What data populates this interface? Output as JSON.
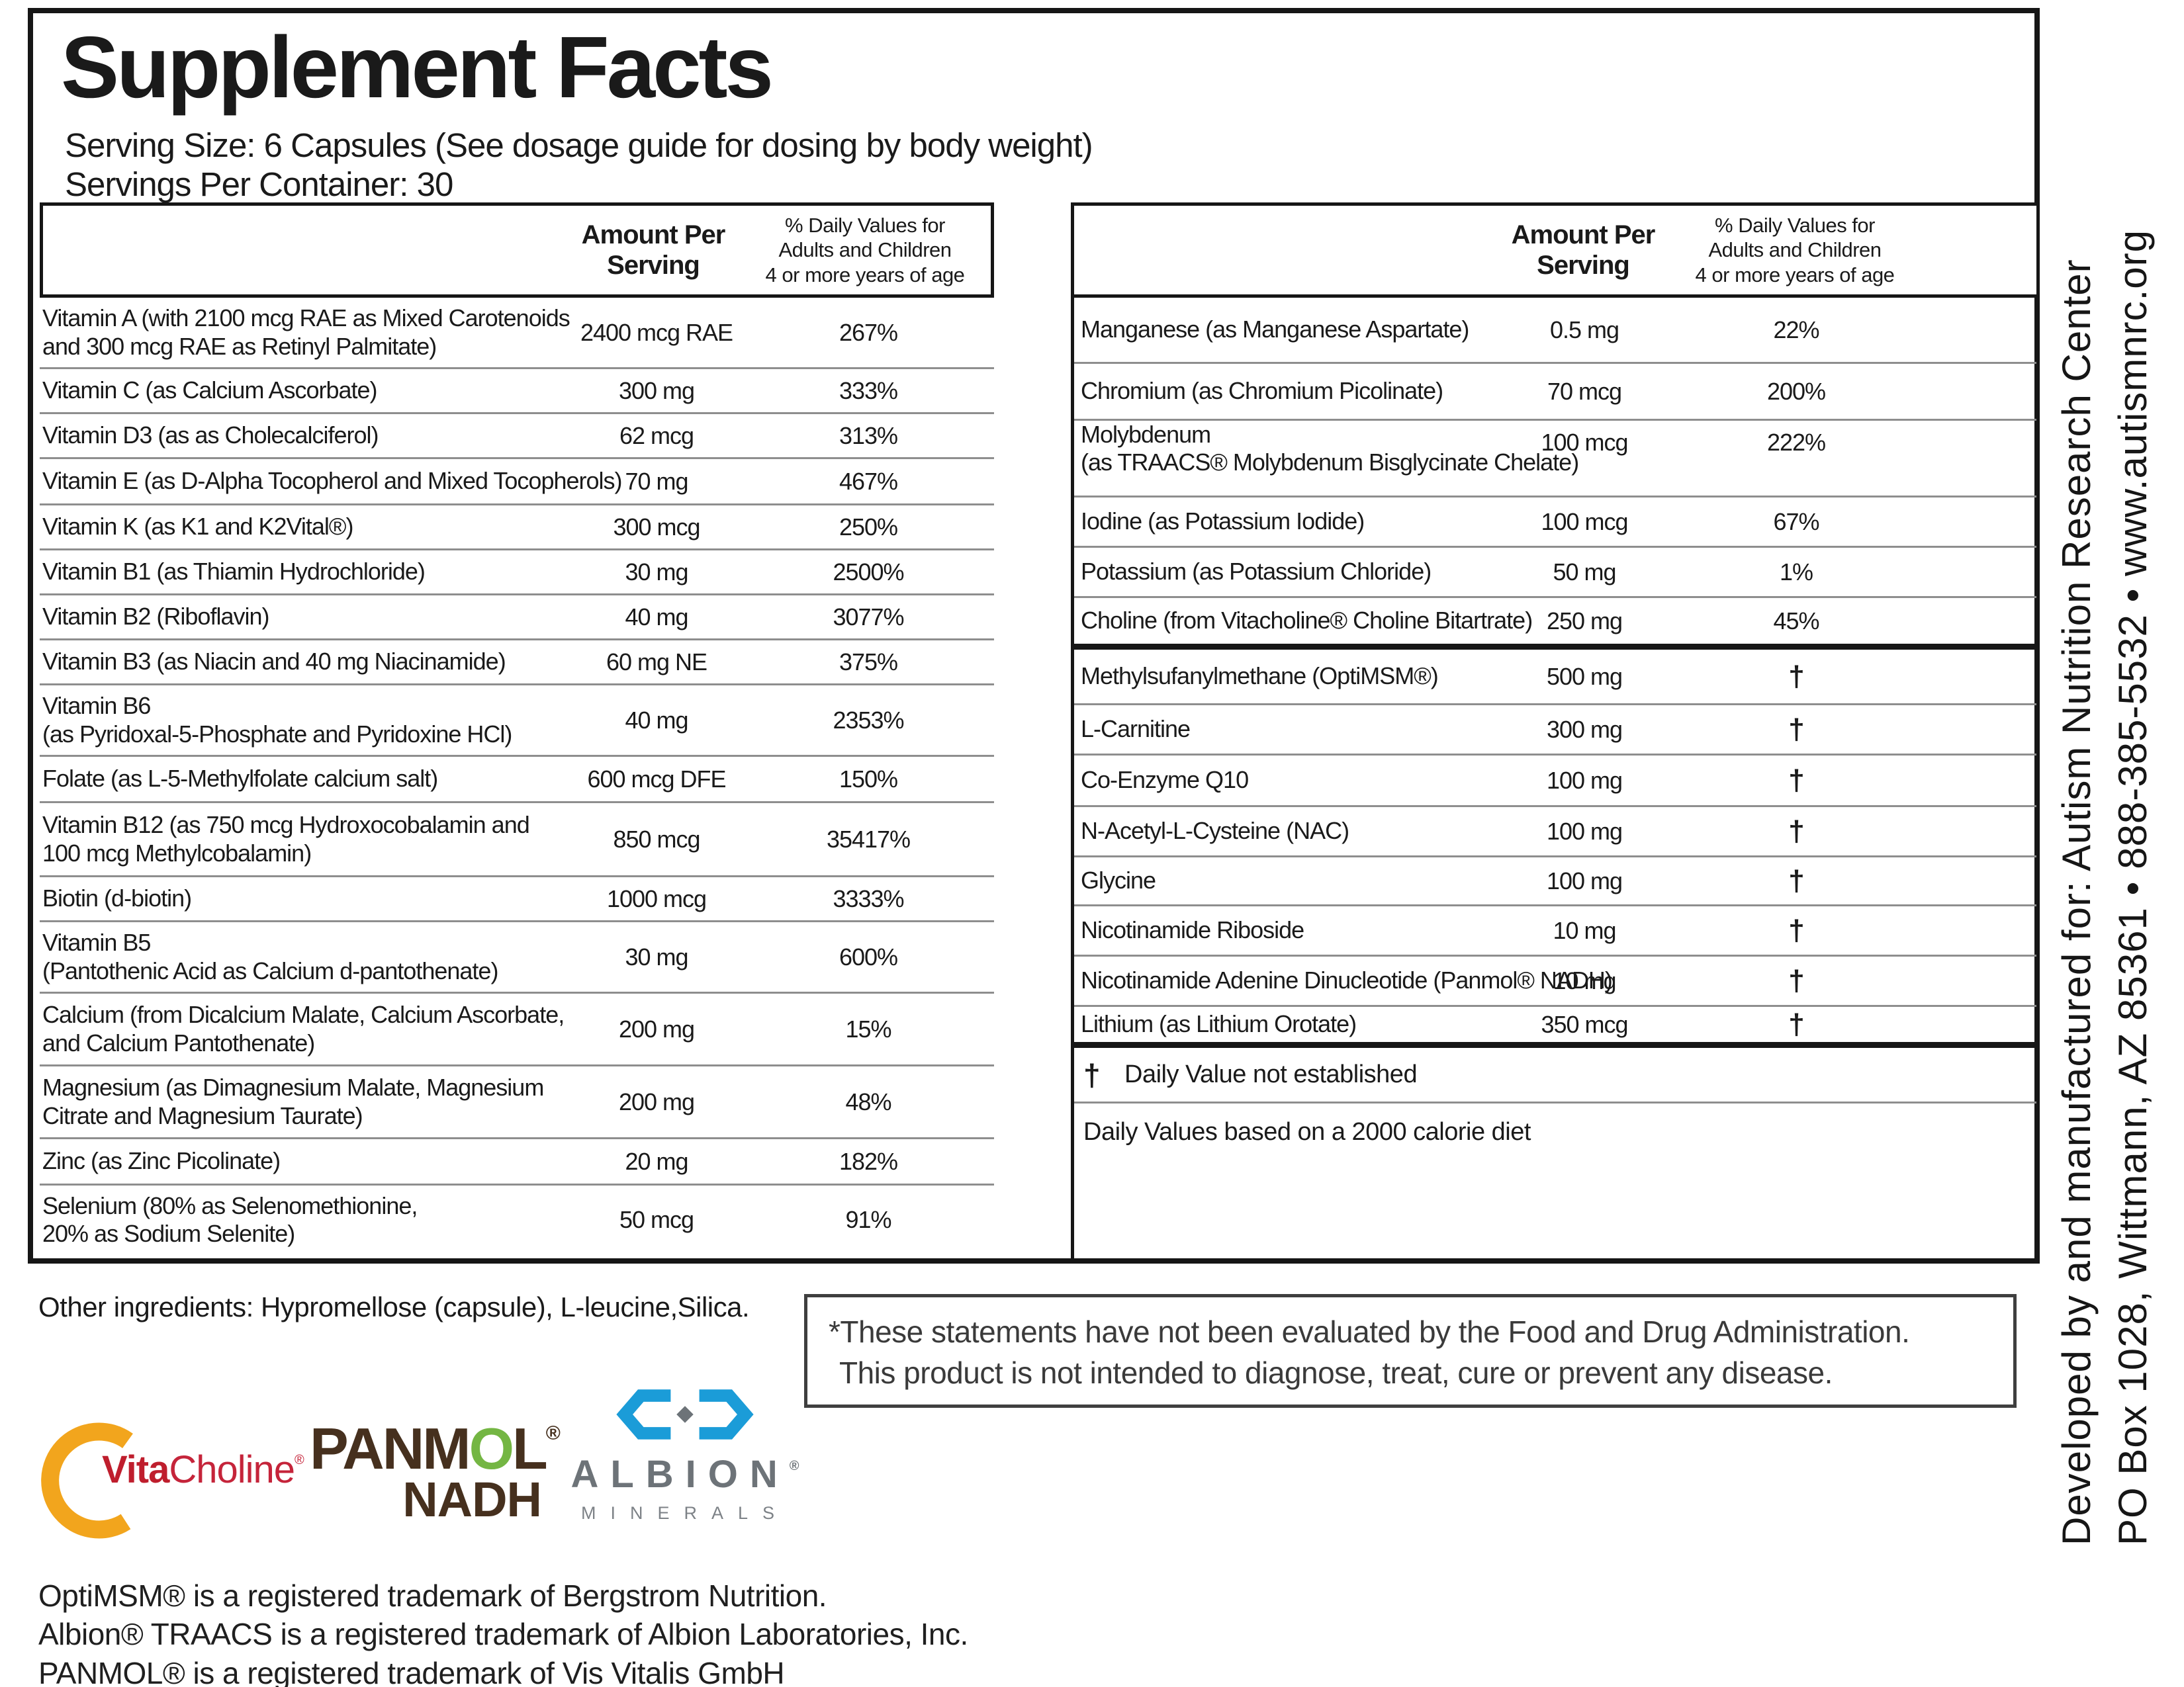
{
  "header": {
    "title": "Supplement Facts",
    "serving_size": "Serving Size: 6 Capsules (See dosage guide for dosing by body weight)",
    "servings_per_container": "Servings Per Container: 30"
  },
  "table_header": {
    "amount_lines": [
      "Amount Per",
      "Serving"
    ],
    "dv_lines": [
      "% Daily Values for",
      "Adults and Children",
      "4 or more years of age"
    ]
  },
  "left_table": {
    "rows": [
      {
        "name_lines": [
          "Vitamin A (with 2100 mcg RAE as Mixed Carotenoids",
          "and 300 mcg RAE as Retinyl Palmitate)"
        ],
        "amount": "2400 mcg RAE",
        "dv": "267%"
      },
      {
        "name_lines": [
          "Vitamin C (as Calcium Ascorbate)"
        ],
        "amount": "300 mg",
        "dv": "333%"
      },
      {
        "name_lines": [
          "Vitamin D3 (as as Cholecalciferol)"
        ],
        "amount": "62 mcg",
        "dv": "313%"
      },
      {
        "name_lines": [
          "Vitamin E (as D-Alpha Tocopherol and Mixed Tocopherols)"
        ],
        "amount": "70 mg",
        "dv": "467%"
      },
      {
        "name_lines": [
          "Vitamin K (as K1 and K2Vital®)"
        ],
        "amount": "300 mcg",
        "dv": "250%"
      },
      {
        "name_lines": [
          "Vitamin B1 (as Thiamin Hydrochloride)"
        ],
        "amount": "30 mg",
        "dv": "2500%"
      },
      {
        "name_lines": [
          "Vitamin B2 (Riboflavin)"
        ],
        "amount": "40 mg",
        "dv": "3077%"
      },
      {
        "name_lines": [
          "Vitamin B3 (as Niacin and 40 mg Niacinamide)"
        ],
        "amount": "60 mg NE",
        "dv": "375%"
      },
      {
        "name_lines": [
          "Vitamin B6",
          "(as Pyridoxal-5-Phosphate and Pyridoxine HCl)"
        ],
        "amount": "40 mg",
        "dv": "2353%"
      },
      {
        "name_lines": [
          "Folate (as L-5-Methylfolate calcium salt)"
        ],
        "amount": "600 mcg DFE",
        "dv": "150%"
      },
      {
        "name_lines": [
          "Vitamin B12 (as 750 mcg Hydroxocobalamin and",
          "100 mcg Methylcobalamin)"
        ],
        "amount": "850 mcg",
        "dv": "35417%"
      },
      {
        "name_lines": [
          "Biotin (d-biotin)"
        ],
        "amount": "1000 mcg",
        "dv": "3333%"
      },
      {
        "name_lines": [
          "Vitamin B5",
          "(Pantothenic Acid as Calcium d-pantothenate)"
        ],
        "amount": "30 mg",
        "dv": "600%"
      },
      {
        "name_lines": [
          "Calcium (from Dicalcium Malate, Calcium Ascorbate,",
          "and Calcium Pantothenate)"
        ],
        "amount": "200 mg",
        "dv": "15%"
      },
      {
        "name_lines": [
          "Magnesium (as Dimagnesium Malate, Magnesium",
          "Citrate and Magnesium Taurate)"
        ],
        "amount": "200 mg",
        "dv": "48%"
      },
      {
        "name_lines": [
          "Zinc (as Zinc Picolinate)"
        ],
        "amount": "20 mg",
        "dv": "182%"
      },
      {
        "name_lines": [
          "Selenium (80% as Selenomethionine,",
          "20% as Sodium Selenite)"
        ],
        "amount": "50 mcg",
        "dv": "91%"
      }
    ]
  },
  "right_table": {
    "rows": [
      {
        "name_lines": [
          "Manganese (as Manganese Aspartate)"
        ],
        "amount": "0.5 mg",
        "dv": "22%"
      },
      {
        "name_lines": [
          "Chromium (as Chromium Picolinate)"
        ],
        "amount": "70 mcg",
        "dv": "200%"
      },
      {
        "name_lines": [
          "Molybdenum",
          "(as TRAACS® Molybdenum Bisglycinate Chelate)"
        ],
        "amount": "100 mcg",
        "dv": "222%"
      },
      {
        "name_lines": [
          "Iodine (as Potassium Iodide)"
        ],
        "amount": "100 mcg",
        "dv": "67%"
      },
      {
        "name_lines": [
          "Potassium (as Potassium Chloride)"
        ],
        "amount": "50 mg",
        "dv": "1%"
      },
      {
        "name_lines": [
          "Choline (from Vitacholine® Choline Bitartrate)"
        ],
        "amount": "250 mg",
        "dv": "45%"
      },
      {
        "name_lines": [
          "Methylsufanylmethane (OptiMSM®)"
        ],
        "amount": "500 mg",
        "dv": "†"
      },
      {
        "name_lines": [
          "L-Carnitine"
        ],
        "amount": "300 mg",
        "dv": "†"
      },
      {
        "name_lines": [
          "Co-Enzyme Q10"
        ],
        "amount": "100 mg",
        "dv": "†"
      },
      {
        "name_lines": [
          "N-Acetyl-L-Cysteine (NAC)"
        ],
        "amount": "100 mg",
        "dv": "†"
      },
      {
        "name_lines": [
          "Glycine"
        ],
        "amount": "100 mg",
        "dv": "†"
      },
      {
        "name_lines": [
          "Nicotinamide Riboside"
        ],
        "amount": "10 mg",
        "dv": "†"
      },
      {
        "name_lines": [
          "Nicotinamide Adenine Dinucleotide (Panmol® NADH)"
        ],
        "amount": "10 mg",
        "dv": "†"
      },
      {
        "name_lines": [
          "Lithium (as Lithium Orotate)"
        ],
        "amount": "350 mcg",
        "dv": "†"
      }
    ],
    "dagger_symbol": "†",
    "dagger_note": "Daily Value not established",
    "dv_note": "Daily Values based on a 2000 calorie diet"
  },
  "other_ingredients": "Other ingredients: Hypromellose (capsule), L-leucine,Silica.",
  "disclaimer": {
    "line1": "*These statements have not been evaluated by the Food and Drug Administration.",
    "line2": "This product is not intended to diagnose, treat, cure or prevent any disease."
  },
  "logos": {
    "vitacholine": {
      "part_bold": "Vita",
      "part_light": "Choline",
      "reg": "®"
    },
    "panmol": {
      "p1": "PANM",
      "o": "O",
      "p2": "L",
      "reg": "®",
      "sub": "NADH"
    },
    "albion": {
      "name": "ALBION",
      "reg": "®",
      "sub": "MINERALS"
    }
  },
  "trademarks": [
    "OptiMSM® is a registered trademark of Bergstrom Nutrition.",
    "Albion® TRAACS is a registered trademark of Albion Laboratories, Inc.",
    "PANMOL® is a registered trademark of Vis Vitalis GmbH"
  ],
  "sidebar": {
    "line1": "Developed by and manufactured for: Autism Nutrition Research Center",
    "line2": "PO Box 1028, Wittmann, AZ 85361  •  888-385-5532  •  www.autismnrc.org"
  },
  "colors": {
    "vita_red": "#bf1e2d",
    "choline_red": "#c5243a",
    "ring_orange": "#f2a51d",
    "panmol_brown": "#46301e",
    "panmol_green": "#74b643",
    "albion_blue": "#1b9cd8",
    "albion_gray": "#6d7378",
    "albion_gray_light": "#7d8287"
  }
}
